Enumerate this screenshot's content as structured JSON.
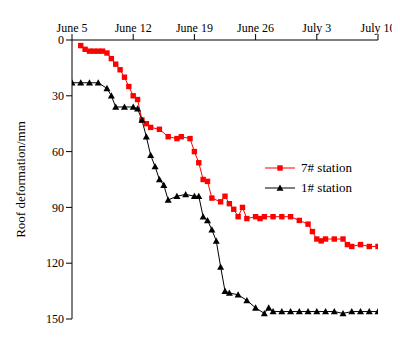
{
  "chart_data": {
    "type": "line",
    "y_label": "Roof deformation/mm",
    "xlim": [
      0,
      35
    ],
    "xticks": [
      {
        "value": 0,
        "label": "June 5"
      },
      {
        "value": 7,
        "label": "June 12"
      },
      {
        "value": 14,
        "label": "June 19"
      },
      {
        "value": 21,
        "label": "June 26"
      },
      {
        "value": 28,
        "label": "July 3"
      },
      {
        "value": 35,
        "label": "July 10"
      }
    ],
    "ylim": [
      0,
      150
    ],
    "yticks": [
      0,
      30,
      60,
      90,
      120,
      150
    ],
    "y_inverted": true,
    "grid": false,
    "legend": "right",
    "series": [
      {
        "name": "7# station",
        "color": "#ff0000",
        "marker": "square",
        "x": [
          1,
          1.5,
          2,
          2.5,
          3,
          3.5,
          4,
          4.5,
          5,
          5.5,
          6,
          6.5,
          7,
          7.5,
          8,
          8.5,
          9,
          10,
          11,
          12,
          12.5,
          13.5,
          14,
          14.5,
          15,
          15.5,
          16,
          17,
          17.5,
          18,
          18.5,
          19,
          19.5,
          20,
          21,
          21.5,
          22,
          23,
          24,
          25,
          26,
          27,
          27.5,
          28,
          28.5,
          29,
          30,
          31,
          31.5,
          32,
          33,
          34,
          35
        ],
        "values": [
          3,
          5,
          6,
          6,
          6,
          6,
          7,
          10,
          13,
          16,
          20,
          25,
          30,
          32,
          43,
          45,
          47,
          48,
          52,
          53,
          52,
          53,
          60,
          66,
          75,
          76,
          85,
          87,
          84,
          88,
          91,
          95,
          90,
          96,
          95,
          96,
          95,
          95,
          95,
          95,
          97,
          99,
          103,
          107,
          108,
          107,
          107,
          107,
          110,
          111,
          110,
          111,
          111
        ]
      },
      {
        "name": "1# station",
        "color": "#000000",
        "marker": "triangle",
        "x": [
          0,
          1,
          2,
          3,
          4,
          4.5,
          5,
          6,
          7,
          7.5,
          8,
          8.5,
          9,
          9.5,
          10,
          10.5,
          11,
          12,
          13,
          14,
          14.5,
          15,
          15.5,
          16,
          16.5,
          17,
          17.5,
          18,
          19,
          20,
          21,
          22,
          22.5,
          23,
          24,
          25,
          26,
          27,
          28,
          29,
          30,
          31,
          32,
          33,
          34,
          35
        ],
        "values": [
          23,
          23,
          23,
          23,
          26,
          30,
          36,
          36,
          36,
          37,
          43,
          52,
          62,
          68,
          75,
          78,
          86,
          84,
          83,
          84,
          84,
          95,
          97,
          102,
          108,
          122,
          135,
          136,
          137,
          140,
          144,
          147,
          144,
          146,
          146,
          146,
          146,
          146,
          146,
          146,
          146,
          147,
          146,
          146,
          146,
          146
        ]
      }
    ]
  }
}
